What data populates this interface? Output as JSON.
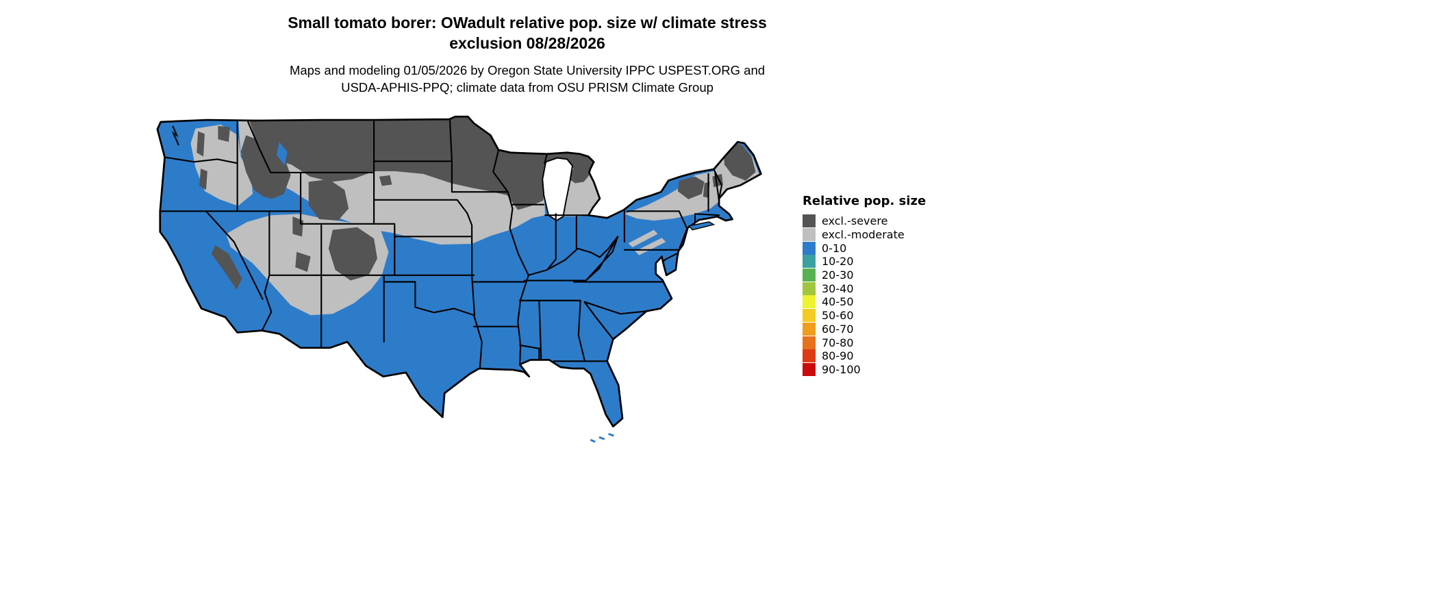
{
  "header": {
    "title_line1": "Small tomato borer: OWadult relative pop. size w/ climate stress",
    "title_line2": "exclusion 08/28/2026",
    "subtitle_line1": "Maps and modeling 01/05/2026 by Oregon State University IPPC USPEST.ORG and",
    "subtitle_line2": "USDA-APHIS-PPQ; climate data from OSU PRISM Climate Group"
  },
  "legend": {
    "title": "Relative pop. size",
    "entries": [
      {
        "label": "excl.-severe",
        "color": "#545454"
      },
      {
        "label": "excl.-moderate",
        "color": "#bfbfbf"
      },
      {
        "label": "0-10",
        "color": "#2d7cca"
      },
      {
        "label": "10-20",
        "color": "#3aa0a0"
      },
      {
        "label": "20-30",
        "color": "#58b24f"
      },
      {
        "label": "30-40",
        "color": "#9fc63c"
      },
      {
        "label": "40-50",
        "color": "#eef32f"
      },
      {
        "label": "50-60",
        "color": "#f3cb21"
      },
      {
        "label": "60-70",
        "color": "#f09c1c"
      },
      {
        "label": "70-80",
        "color": "#e8711c"
      },
      {
        "label": "80-90",
        "color": "#de3a14"
      },
      {
        "label": "90-100",
        "color": "#cb0b0b"
      }
    ]
  },
  "map": {
    "zones_shown": {
      "severe": "excl.-severe",
      "moderate": "excl.-moderate",
      "population": "0-10"
    }
  }
}
